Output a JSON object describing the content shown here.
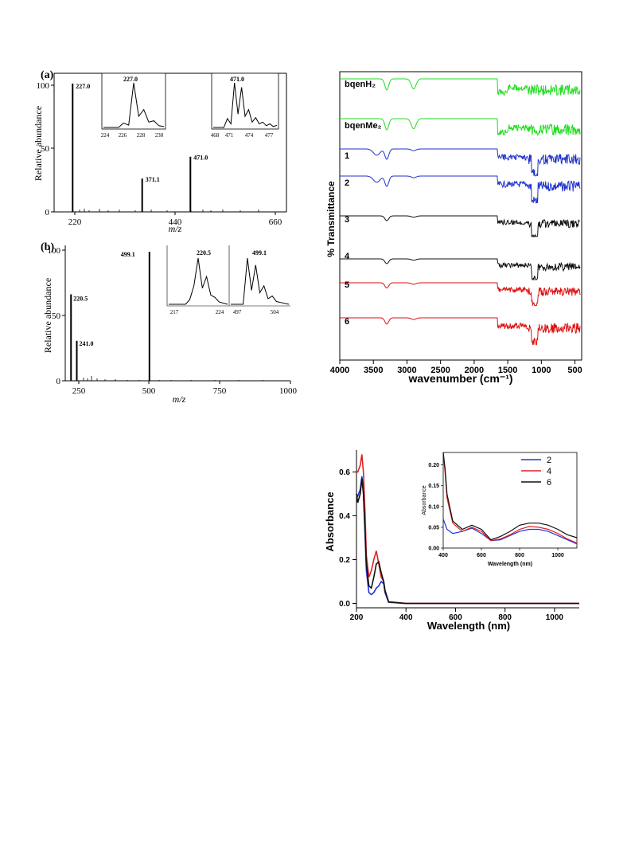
{
  "chart_data": [
    {
      "panel": "(a)",
      "type": "bar",
      "ylabel": "Relative abundance",
      "xlabel": "m/z",
      "xlim": [
        215,
        670
      ],
      "ylim": [
        0,
        108
      ],
      "xticks": [
        "220",
        "440",
        "660"
      ],
      "yticks": [
        "0",
        "50",
        "100"
      ],
      "peaks": [
        {
          "x": 227.0,
          "y": 100,
          "label": "227.0"
        },
        {
          "x": 371.1,
          "y": 26,
          "label": "371.1"
        },
        {
          "x": 471.0,
          "y": 43,
          "label": "471.0"
        }
      ],
      "insets": [
        {
          "xticks": [
            "224",
            "226",
            "228",
            "230"
          ],
          "label": "227.0",
          "x": [
            224,
            225.5,
            226,
            226.5,
            227,
            227.5,
            228,
            228.5,
            229,
            229.5,
            230
          ],
          "y": [
            0,
            0,
            10,
            5,
            100,
            25,
            40,
            12,
            15,
            4,
            2
          ]
        },
        {
          "xticks": [
            "468",
            "471",
            "474",
            "477"
          ],
          "label": "471.0",
          "x": [
            468,
            469.5,
            470,
            470.5,
            471,
            471.5,
            472,
            472.5,
            473,
            473.5,
            474,
            474.5,
            475,
            475.5,
            476,
            476.5,
            477
          ],
          "y": [
            0,
            0,
            20,
            8,
            100,
            30,
            90,
            25,
            40,
            12,
            22,
            8,
            12,
            4,
            8,
            2,
            5
          ]
        }
      ]
    },
    {
      "panel": "(b)",
      "type": "bar",
      "ylabel": "Relative abundance",
      "xlabel": "m/z",
      "xlim": [
        200,
        1000
      ],
      "ylim": [
        0,
        105
      ],
      "xticks": [
        "250",
        "500",
        "750",
        "1000"
      ],
      "yticks": [
        "0",
        "50",
        "100"
      ],
      "peaks": [
        {
          "x": 220.5,
          "y": 67,
          "label": "220.5"
        },
        {
          "x": 241.0,
          "y": 31,
          "label": "241.0"
        },
        {
          "x": 499.1,
          "y": 100,
          "label": "499.1"
        }
      ],
      "insets": [
        {
          "xticks": [
            "217",
            "224"
          ],
          "label": "220.5",
          "x": [
            217,
            219,
            219.5,
            220,
            220.5,
            221,
            221.5,
            222,
            222.5,
            223,
            224
          ],
          "y": [
            0,
            0,
            10,
            40,
            100,
            35,
            60,
            20,
            15,
            5,
            0
          ]
        },
        {
          "xticks": [
            "497",
            "504"
          ],
          "label": "499.1",
          "x": [
            497,
            498.5,
            499,
            499.5,
            500,
            500.5,
            501,
            501.5,
            502,
            502.5,
            503,
            504
          ],
          "y": [
            0,
            0,
            100,
            30,
            85,
            25,
            40,
            12,
            18,
            6,
            4,
            0
          ]
        }
      ]
    },
    {
      "type": "line",
      "ylabel": "% Transmittance",
      "xlabel": "wavenumber (cm⁻¹)",
      "xlim": [
        4000,
        400
      ],
      "xticks": [
        "4000",
        "3500",
        "3000",
        "2500",
        "2000",
        "1500",
        "1000",
        "500"
      ],
      "series": [
        {
          "name": "bqenH₂",
          "color": "#22dd22"
        },
        {
          "name": "bqenMe₂",
          "color": "#22dd22"
        },
        {
          "name": "1",
          "color": "#2233cc"
        },
        {
          "name": "2",
          "color": "#2233cc"
        },
        {
          "name": "3",
          "color": "#111111"
        },
        {
          "name": "4",
          "color": "#111111"
        },
        {
          "name": "5",
          "color": "#dd1111"
        },
        {
          "name": "6",
          "color": "#dd1111"
        }
      ]
    },
    {
      "type": "line",
      "ylabel": "Absorbance",
      "xlabel": "Wavelength (nm)",
      "xlim": [
        200,
        1100
      ],
      "ylim": [
        -0.02,
        0.7
      ],
      "xticks": [
        "200",
        "400",
        "600",
        "800",
        "1000"
      ],
      "yticks": [
        "0.0",
        "0.2",
        "0.4",
        "0.6"
      ],
      "series": [
        {
          "name": "2",
          "color": "#2233dd",
          "x": [
            200,
            205,
            215,
            222,
            228,
            235,
            240,
            250,
            260,
            270,
            280,
            290,
            300,
            310,
            315,
            330,
            400,
            1100
          ],
          "y": [
            0.5,
            0.49,
            0.52,
            0.58,
            0.52,
            0.3,
            0.15,
            0.05,
            0.04,
            0.05,
            0.07,
            0.08,
            0.1,
            0.09,
            0.05,
            0.005,
            0.0,
            0.0
          ]
        },
        {
          "name": "4",
          "color": "#dd2222",
          "x": [
            200,
            205,
            215,
            222,
            228,
            235,
            240,
            250,
            260,
            270,
            280,
            290,
            300,
            310,
            315,
            330,
            400,
            1100
          ],
          "y": [
            0.6,
            0.6,
            0.63,
            0.68,
            0.6,
            0.4,
            0.22,
            0.12,
            0.15,
            0.2,
            0.24,
            0.18,
            0.12,
            0.1,
            0.06,
            0.007,
            0.0,
            0.0
          ]
        },
        {
          "name": "6",
          "color": "#111111",
          "x": [
            200,
            205,
            215,
            222,
            228,
            235,
            240,
            250,
            260,
            270,
            280,
            290,
            300,
            310,
            315,
            330,
            400,
            1100
          ],
          "y": [
            0.5,
            0.46,
            0.5,
            0.57,
            0.5,
            0.32,
            0.18,
            0.08,
            0.07,
            0.12,
            0.18,
            0.19,
            0.14,
            0.1,
            0.06,
            0.007,
            0.0,
            0.0
          ]
        }
      ],
      "inset": {
        "xlabel": "Wavelength (nm)",
        "ylabel": "Absorbance",
        "xlim": [
          400,
          1100
        ],
        "ylim": [
          0,
          0.23
        ],
        "xticks": [
          "400",
          "600",
          "800",
          "1000"
        ],
        "yticks": [
          "0.00",
          "0.05",
          "0.10",
          "0.15",
          "0.20"
        ],
        "series": [
          {
            "name": "2",
            "color": "#2233dd",
            "x": [
              400,
              420,
              450,
              500,
              550,
              600,
              650,
              700,
              750,
              800,
              850,
              900,
              950,
              1000,
              1050,
              1100
            ],
            "y": [
              0.07,
              0.045,
              0.035,
              0.04,
              0.048,
              0.035,
              0.018,
              0.02,
              0.03,
              0.04,
              0.045,
              0.045,
              0.04,
              0.03,
              0.02,
              0.01
            ]
          },
          {
            "name": "4",
            "color": "#dd2222",
            "x": [
              400,
              410,
              420,
              450,
              500,
              550,
              600,
              650,
              700,
              750,
              800,
              850,
              900,
              950,
              1000,
              1050,
              1100
            ],
            "y": [
              0.23,
              0.18,
              0.12,
              0.06,
              0.04,
              0.05,
              0.04,
              0.018,
              0.022,
              0.032,
              0.045,
              0.052,
              0.05,
              0.045,
              0.035,
              0.022,
              0.012
            ]
          },
          {
            "name": "6",
            "color": "#111111",
            "x": [
              400,
              410,
              420,
              450,
              500,
              550,
              600,
              650,
              700,
              750,
              800,
              850,
              900,
              950,
              1000,
              1050,
              1100
            ],
            "y": [
              0.23,
              0.19,
              0.13,
              0.065,
              0.045,
              0.055,
              0.045,
              0.02,
              0.028,
              0.04,
              0.055,
              0.06,
              0.06,
              0.055,
              0.045,
              0.032,
              0.025
            ]
          }
        ]
      }
    }
  ]
}
